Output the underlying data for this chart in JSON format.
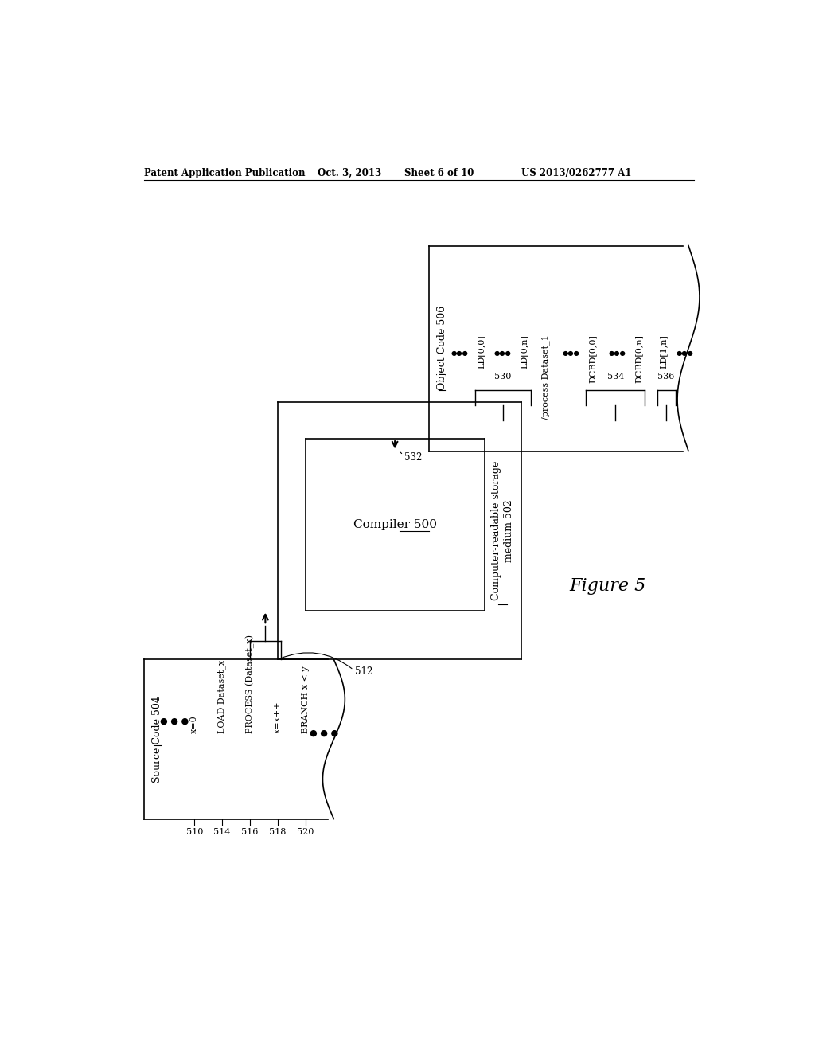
{
  "bg_color": "#ffffff",
  "header_text": "Patent Application Publication",
  "header_date": "Oct. 3, 2013",
  "header_sheet": "Sheet 6 of 10",
  "header_patent": "US 2013/0262777 A1",
  "figure_label": "Figure 5",
  "source_code_label": "Source Code 504",
  "object_code_label": "Object Code 506",
  "compiler_label": "Compiler 500",
  "medium_label": "Computer-readable storage\nmedium 502",
  "source_lines": [
    "x=0",
    "LOAD Dataset_x",
    "PROCESS (Dataset_x)",
    "x=x++",
    "BRANCH x < y"
  ],
  "source_labels": [
    "510",
    "514",
    "516",
    "518",
    "520"
  ],
  "obj_items": [
    "LD[0,0]",
    "LD[0,n]",
    "/process Dataset_1",
    "DCBD[0,0]",
    "DCBD[0,n]",
    "LD[1,n]"
  ],
  "brace_530": "530",
  "brace_534": "534",
  "brace_536": "536",
  "label_512": "512",
  "label_532": "532"
}
